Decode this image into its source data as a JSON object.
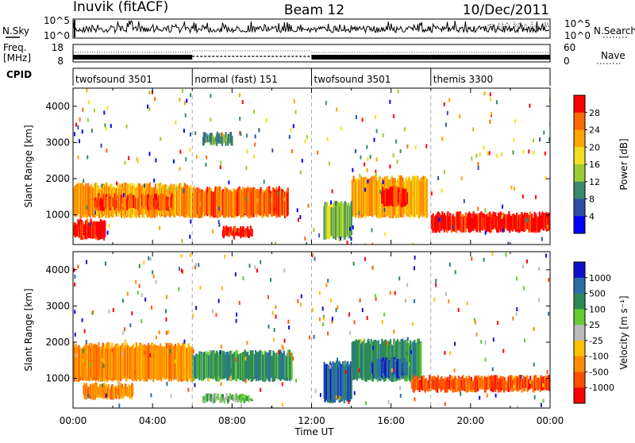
{
  "header": {
    "station": "Inuvik (fitACF)",
    "beam": "Beam 12",
    "date": "10/Dec/2011"
  },
  "top_panels": {
    "nsky_label": "N.Sky",
    "nsearch_label": "N.Search",
    "nsky_ticks": [
      "10^5",
      "10^0"
    ],
    "nsearch_ticks": [
      "10^5",
      "10^0"
    ],
    "freq_label_line1": "Freq.",
    "freq_label_line2": "[MHz]",
    "freq_ticks": [
      "18",
      "8"
    ],
    "nave_label": "Nave",
    "nave_ticks": [
      "60",
      "0"
    ],
    "cpid_label": "CPID"
  },
  "modes": [
    {
      "label": "twofsound 3501",
      "start_hour": 0,
      "end_hour": 6
    },
    {
      "label": "normal (fast) 151",
      "start_hour": 6,
      "end_hour": 12
    },
    {
      "label": "twofsound 3501",
      "start_hour": 12,
      "end_hour": 18
    },
    {
      "label": "themis 3300",
      "start_hour": 18,
      "end_hour": 24
    }
  ],
  "colors": {
    "power": [
      "#0000ff",
      "#2f4fa8",
      "#3c8a6e",
      "#9acd32",
      "#f0e020",
      "#ffa500",
      "#ff6a00",
      "#ff0000"
    ],
    "velocity": [
      "#1010cc",
      "#2a6fa8",
      "#2e8b57",
      "#66cc33",
      "#bbbbbb",
      "#ffc000",
      "#ff8c00",
      "#ff5000",
      "#ff0000"
    ]
  },
  "chart_data": [
    {
      "type": "heatmap",
      "name": "power-panel",
      "title": "Power",
      "ylabel": "Slant Range [km]",
      "xlabel": "Time UT",
      "x_ticks": [
        "00:00",
        "04:00",
        "08:00",
        "12:00",
        "16:00",
        "20:00",
        "00:00"
      ],
      "y_ticks": [
        1000,
        2000,
        3000,
        4000
      ],
      "xlim": [
        0,
        24
      ],
      "ylim": [
        180,
        4500
      ],
      "colorbar_label": "Power [dB]",
      "colorbar_ticks": [
        "4",
        "8",
        "12",
        "16",
        "20",
        "24",
        "28"
      ],
      "regions": [
        {
          "t0": 0.0,
          "t1": 1.6,
          "r0": 300,
          "r1": 900,
          "level": 7
        },
        {
          "t0": 0.0,
          "t1": 6.0,
          "r0": 900,
          "r1": 1900,
          "level": 5
        },
        {
          "t0": 1.0,
          "t1": 5.0,
          "r0": 1100,
          "r1": 1600,
          "level": 6
        },
        {
          "t0": 6.0,
          "t1": 10.8,
          "r0": 900,
          "r1": 1800,
          "level": 6
        },
        {
          "t0": 7.5,
          "t1": 9.0,
          "r0": 350,
          "r1": 700,
          "level": 7
        },
        {
          "t0": 6.5,
          "t1": 8.0,
          "r0": 2900,
          "r1": 3300,
          "level": 2
        },
        {
          "t0": 14.0,
          "t1": 17.8,
          "r0": 900,
          "r1": 2100,
          "level": 5
        },
        {
          "t0": 15.5,
          "t1": 16.8,
          "r0": 1200,
          "r1": 1800,
          "level": 7
        },
        {
          "t0": 18.0,
          "t1": 24.0,
          "r0": 500,
          "r1": 1100,
          "level": 7
        },
        {
          "t0": 12.6,
          "t1": 14.0,
          "r0": 300,
          "r1": 1400,
          "level": 3
        }
      ]
    },
    {
      "type": "heatmap",
      "name": "velocity-panel",
      "title": "Velocity",
      "ylabel": "Slant Range [km]",
      "xlabel": "Time UT",
      "x_ticks": [
        "00:00",
        "04:00",
        "08:00",
        "12:00",
        "16:00",
        "20:00",
        "00:00"
      ],
      "y_ticks": [
        1000,
        2000,
        3000,
        4000
      ],
      "xlim": [
        0,
        24
      ],
      "ylim": [
        180,
        4500
      ],
      "colorbar_label": "Velocity [m s⁻¹]",
      "colorbar_ticks": [
        "1000",
        "500",
        "100",
        "25",
        "-25",
        "-100",
        "-500",
        "-1000"
      ],
      "regions": [
        {
          "t0": 0.0,
          "t1": 6.0,
          "r0": 900,
          "r1": 2000,
          "level": 6
        },
        {
          "t0": 0.5,
          "t1": 3.0,
          "r0": 400,
          "r1": 900,
          "level": 6
        },
        {
          "t0": 6.0,
          "t1": 11.0,
          "r0": 900,
          "r1": 1800,
          "level": 2
        },
        {
          "t0": 6.5,
          "t1": 9.0,
          "r0": 300,
          "r1": 600,
          "level": 3
        },
        {
          "t0": 12.6,
          "t1": 14.0,
          "r0": 300,
          "r1": 1500,
          "level": 1
        },
        {
          "t0": 14.0,
          "t1": 17.5,
          "r0": 900,
          "r1": 2100,
          "level": 2
        },
        {
          "t0": 15.0,
          "t1": 16.8,
          "r0": 1000,
          "r1": 1600,
          "level": 1
        },
        {
          "t0": 17.0,
          "t1": 24.0,
          "r0": 600,
          "r1": 1100,
          "level": 7
        }
      ]
    }
  ]
}
